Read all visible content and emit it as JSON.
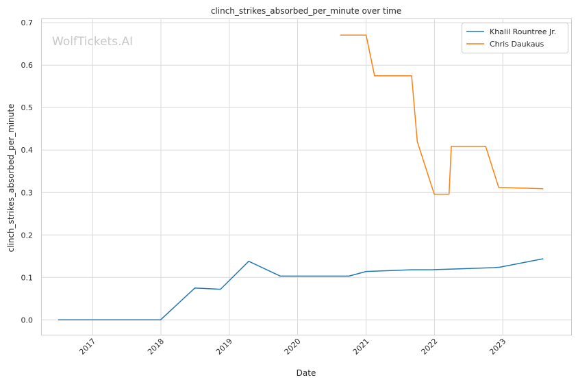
{
  "chart_data": {
    "type": "line",
    "title": "clinch_strikes_absorbed_per_minute over time",
    "xlabel": "Date",
    "ylabel": "clinch_strikes_absorbed_per_minute",
    "watermark": "WolfTickets.AI",
    "x_ticks": [
      "2017",
      "2018",
      "2019",
      "2020",
      "2021",
      "2022",
      "2023"
    ],
    "y_ticks": [
      "0.0",
      "0.1",
      "0.2",
      "0.3",
      "0.4",
      "0.5",
      "0.6",
      "0.7"
    ],
    "xlim": [
      "2016-04-01",
      "2024-01-01"
    ],
    "ylim": [
      -0.035,
      0.71
    ],
    "grid": true,
    "legend_position": "top-right",
    "series": [
      {
        "name": "Khalil Rountree Jr.",
        "color": "#1f77b4",
        "points": [
          [
            "2016-07-01",
            0.0
          ],
          [
            "2017-12-30",
            0.0
          ],
          [
            "2018-07-01",
            0.075
          ],
          [
            "2018-11-15",
            0.072
          ],
          [
            "2019-04-15",
            0.138
          ],
          [
            "2019-10-01",
            0.103
          ],
          [
            "2020-10-01",
            0.103
          ],
          [
            "2021-01-01",
            0.114
          ],
          [
            "2021-09-01",
            0.118
          ],
          [
            "2021-12-15",
            0.118
          ],
          [
            "2022-05-01",
            0.12
          ],
          [
            "2022-11-15",
            0.123
          ],
          [
            "2022-12-15",
            0.124
          ],
          [
            "2023-08-05",
            0.144
          ]
        ]
      },
      {
        "name": "Chris Daukaus",
        "color": "#ff7f0e",
        "points": [
          [
            "2020-08-15",
            0.671
          ],
          [
            "2021-01-01",
            0.671
          ],
          [
            "2021-02-15",
            0.575
          ],
          [
            "2021-09-01",
            0.575
          ],
          [
            "2021-10-01",
            0.42
          ],
          [
            "2021-12-31",
            0.296
          ],
          [
            "2022-03-20",
            0.296
          ],
          [
            "2022-04-01",
            0.409
          ],
          [
            "2022-10-01",
            0.409
          ],
          [
            "2022-12-10",
            0.312
          ],
          [
            "2023-08-05",
            0.309
          ]
        ]
      }
    ]
  }
}
